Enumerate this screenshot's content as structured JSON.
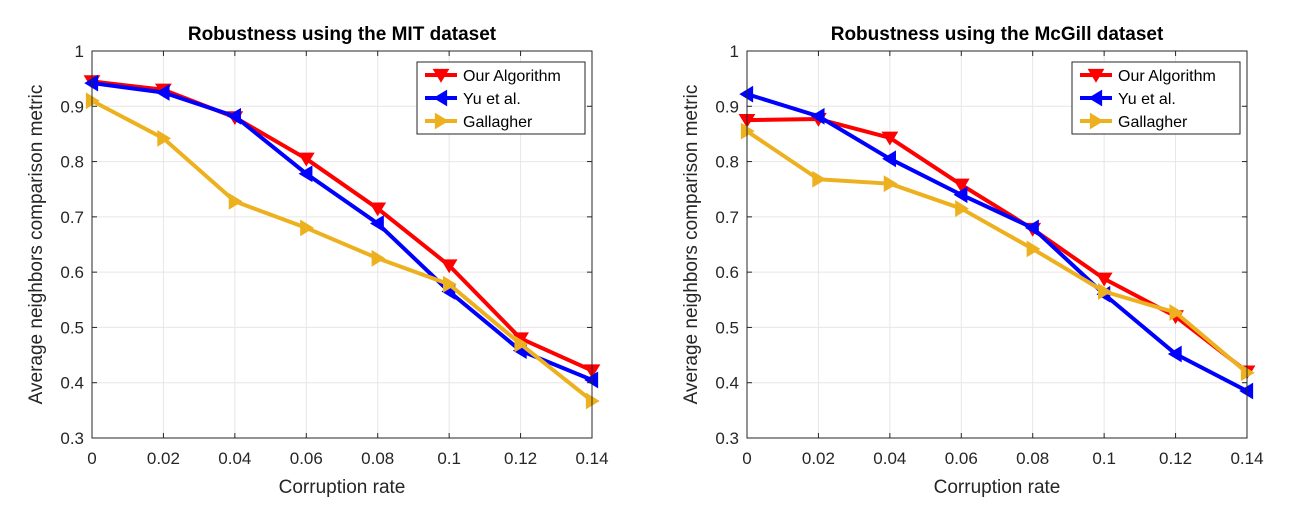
{
  "chart_data": [
    {
      "type": "line",
      "title": "Robustness using the MIT dataset",
      "xlabel": "Corruption rate",
      "ylabel": "Average neighbors comparison metric",
      "xlim": [
        0,
        0.14
      ],
      "ylim": [
        0.3,
        1
      ],
      "xticks": [
        "0",
        "0.02",
        "0.04",
        "0.06",
        "0.08",
        "0.1",
        "0.12",
        "0.14"
      ],
      "yticks": [
        "0.3",
        "0.4",
        "0.5",
        "0.6",
        "0.7",
        "0.8",
        "0.9",
        "1"
      ],
      "x": [
        0,
        0.02,
        0.04,
        0.06,
        0.08,
        0.1,
        0.12,
        0.14
      ],
      "grid": true,
      "legend_position": "top-right",
      "series": [
        {
          "name": "Our Algorithm",
          "color": "#ff0000",
          "marker": "triangle-down",
          "values": [
            0.945,
            0.93,
            0.88,
            0.805,
            0.715,
            0.612,
            0.48,
            0.422
          ]
        },
        {
          "name": "Yu et al.",
          "color": "#0000ff",
          "marker": "triangle-left",
          "values": [
            0.942,
            0.925,
            0.882,
            0.778,
            0.688,
            0.565,
            0.458,
            0.405
          ]
        },
        {
          "name": "Gallagher",
          "color": "#edb120",
          "marker": "triangle-right",
          "values": [
            0.91,
            0.842,
            0.728,
            0.68,
            0.625,
            0.578,
            0.47,
            0.367
          ]
        }
      ]
    },
    {
      "type": "line",
      "title": "Robustness using the McGill dataset",
      "xlabel": "Corruption rate",
      "ylabel": "Average neighbors comparison metric",
      "xlim": [
        0,
        0.14
      ],
      "ylim": [
        0.3,
        1
      ],
      "xticks": [
        "0",
        "0.02",
        "0.04",
        "0.06",
        "0.08",
        "0.1",
        "0.12",
        "0.14"
      ],
      "yticks": [
        "0.3",
        "0.4",
        "0.5",
        "0.6",
        "0.7",
        "0.8",
        "0.9",
        "1"
      ],
      "x": [
        0,
        0.02,
        0.04,
        0.06,
        0.08,
        0.1,
        0.12,
        0.14
      ],
      "grid": true,
      "legend_position": "top-right",
      "series": [
        {
          "name": "Our Algorithm",
          "color": "#ff0000",
          "marker": "triangle-down",
          "values": [
            0.875,
            0.877,
            0.843,
            0.758,
            0.678,
            0.588,
            0.52,
            0.42
          ]
        },
        {
          "name": "Yu et al.",
          "color": "#0000ff",
          "marker": "triangle-left",
          "values": [
            0.922,
            0.882,
            0.805,
            0.74,
            0.68,
            0.56,
            0.452,
            0.385
          ]
        },
        {
          "name": "Gallagher",
          "color": "#edb120",
          "marker": "triangle-right",
          "values": [
            0.855,
            0.768,
            0.76,
            0.715,
            0.642,
            0.565,
            0.527,
            0.418
          ]
        }
      ]
    }
  ]
}
